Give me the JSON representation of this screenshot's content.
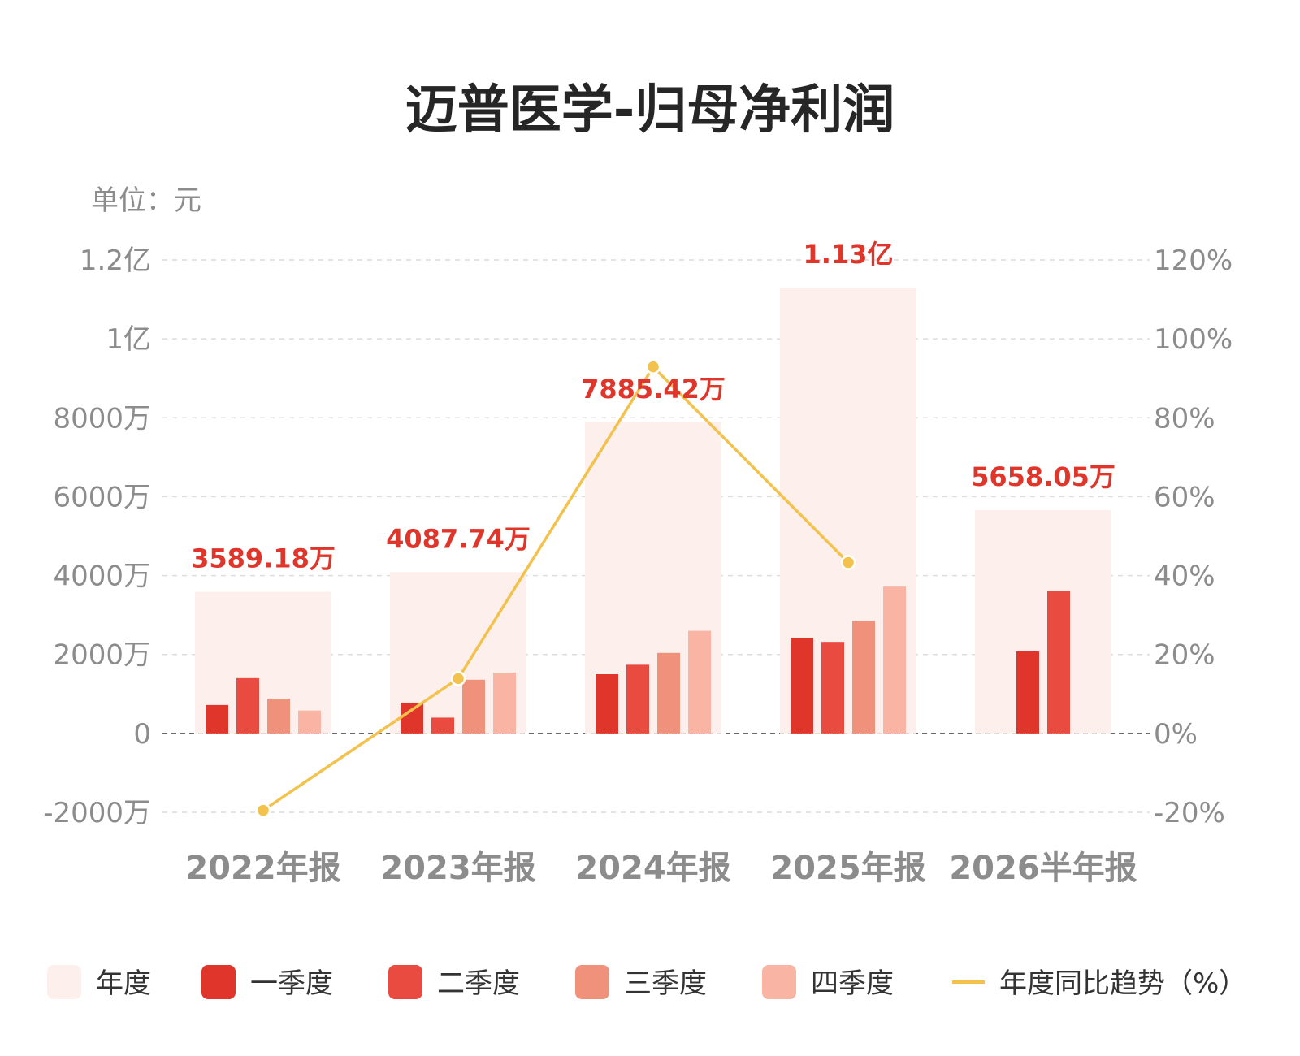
{
  "chart_data": {
    "type": "bar",
    "title": "迈普医学-归母净利润",
    "unit_label": "单位：元",
    "categories": [
      "2022年报",
      "2023年报",
      "2024年报",
      "2025年报",
      "2026半年报"
    ],
    "annual": {
      "name": "年度",
      "values": [
        35891800,
        40877400,
        78854200,
        113000000,
        56580500
      ],
      "labels": [
        "3589.18万",
        "4087.74万",
        "7885.42万",
        "1.13亿",
        "5658.05万"
      ]
    },
    "quarters": [
      {
        "name": "一季度",
        "values": [
          7200000,
          7800000,
          15000000,
          24200000,
          20800000
        ]
      },
      {
        "name": "二季度",
        "values": [
          14000000,
          4000000,
          17400000,
          23200000,
          36000000
        ]
      },
      {
        "name": "三季度",
        "values": [
          8800000,
          13600000,
          20400000,
          28500000,
          null
        ]
      },
      {
        "name": "四季度",
        "values": [
          5800000,
          15400000,
          26000000,
          37200000,
          null
        ]
      }
    ],
    "yoy": {
      "name": "年度同比趋势（%）",
      "values": [
        -19.5,
        13.9,
        92.9,
        43.3,
        null
      ]
    },
    "y_left": {
      "min": -20000000,
      "max": 120000000,
      "ticks": [
        -20000000,
        0,
        20000000,
        40000000,
        60000000,
        80000000,
        100000000,
        120000000
      ],
      "tick_labels": [
        "-2000万",
        "0",
        "2000万",
        "4000万",
        "6000万",
        "8000万",
        "1亿",
        "1.2亿"
      ]
    },
    "y_right": {
      "min": -20,
      "max": 120,
      "ticks": [
        -20,
        0,
        20,
        40,
        60,
        80,
        100,
        120
      ],
      "tick_labels": [
        "-20%",
        "0%",
        "20%",
        "40%",
        "60%",
        "80%",
        "100%",
        "120%"
      ]
    },
    "grid": true,
    "legend_position": "bottom",
    "colors": {
      "annual": "#fdf0ec",
      "q1": "#e0352a",
      "q2": "#ea4b40",
      "q3": "#f0917c",
      "q4": "#f9b4a4",
      "yoy": "#f2c24c",
      "label": "#e0352a",
      "grid": "#dcdcdc",
      "zero": "#555555"
    },
    "legend": [
      "年度",
      "一季度",
      "二季度",
      "三季度",
      "四季度",
      "年度同比趋势（%）"
    ]
  }
}
